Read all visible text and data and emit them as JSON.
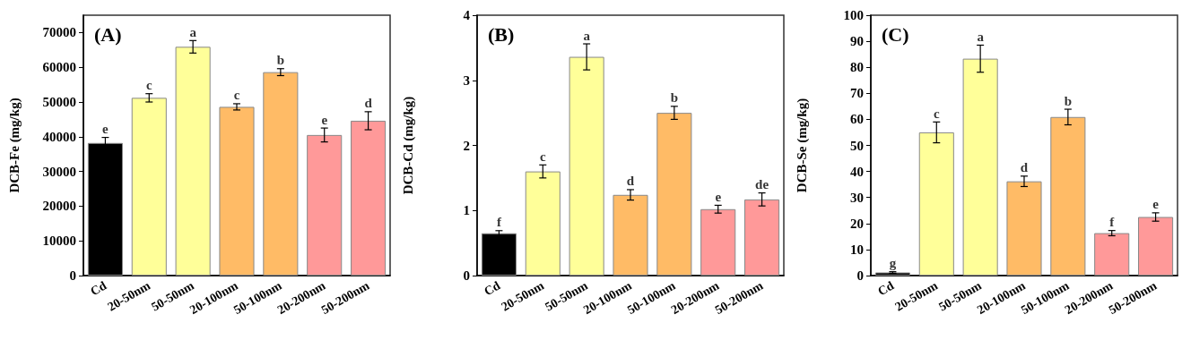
{
  "chart_data": [
    {
      "type": "bar",
      "title": "(A)",
      "ylabel": "DCB-Fe (mg/kg)",
      "categories": [
        "Cd",
        "20-50nm",
        "50-50nm",
        "20-100nm",
        "50-100nm",
        "20-200nm",
        "50-200nm"
      ],
      "values": [
        38200,
        51200,
        65900,
        48600,
        58600,
        40500,
        44600
      ],
      "errors": [
        1600,
        1200,
        1800,
        900,
        1000,
        2000,
        2600
      ],
      "colors": [
        "#000000",
        "#ffff99",
        "#ffff99",
        "#ffbb66",
        "#ffbb66",
        "#ff9999",
        "#ff9999"
      ],
      "ylim": [
        0,
        75000
      ],
      "yticks": [
        0,
        10000,
        20000,
        30000,
        40000,
        50000,
        60000,
        70000
      ],
      "grid": false,
      "annotations": [
        {
          "text": "e",
          "x": "Cd",
          "y": 39800
        },
        {
          "text": "c",
          "x": "20-50nm",
          "y": 52400
        },
        {
          "text": "a",
          "x": "50-50nm",
          "y": 67700
        },
        {
          "text": "c",
          "x": "20-100nm",
          "y": 49500
        },
        {
          "text": "b",
          "x": "50-100nm",
          "y": 59600
        },
        {
          "text": "e",
          "x": "20-200nm",
          "y": 42500
        },
        {
          "text": "d",
          "x": "50-200nm",
          "y": 47200
        }
      ]
    },
    {
      "type": "bar",
      "title": "(B)",
      "ylabel": "DCB-Cd (mg/kg)",
      "categories": [
        "Cd",
        "20-50nm",
        "50-50nm",
        "20-100nm",
        "50-100nm",
        "20-200nm",
        "50-200nm"
      ],
      "values": [
        0.65,
        1.6,
        3.36,
        1.24,
        2.5,
        1.02,
        1.17
      ],
      "errors": [
        0.04,
        0.1,
        0.2,
        0.08,
        0.1,
        0.06,
        0.1
      ],
      "colors": [
        "#000000",
        "#ffff99",
        "#ffff99",
        "#ffbb66",
        "#ffbb66",
        "#ff9999",
        "#ff9999"
      ],
      "ylim": [
        0,
        4
      ],
      "yticks": [
        0,
        1,
        2,
        3,
        4
      ],
      "grid": false,
      "annotations": [
        {
          "text": "f",
          "x": "Cd",
          "y": 0.69
        },
        {
          "text": "c",
          "x": "20-50nm",
          "y": 1.7
        },
        {
          "text": "a",
          "x": "50-50nm",
          "y": 3.56
        },
        {
          "text": "d",
          "x": "20-100nm",
          "y": 1.32
        },
        {
          "text": "b",
          "x": "50-100nm",
          "y": 2.6
        },
        {
          "text": "e",
          "x": "20-200nm",
          "y": 1.08
        },
        {
          "text": "de",
          "x": "50-200nm",
          "y": 1.27
        }
      ]
    },
    {
      "type": "bar",
      "title": "(C)",
      "ylabel": "DCB-Se (mg/kg)",
      "categories": [
        "Cd",
        "20-50nm",
        "50-50nm",
        "20-100nm",
        "50-100nm",
        "20-200nm",
        "50-200nm"
      ],
      "values": [
        1.2,
        55,
        83.3,
        36.2,
        60.9,
        16.3,
        22.5
      ],
      "errors": [
        0.3,
        4,
        5.2,
        2,
        3,
        1,
        1.6
      ],
      "colors": [
        "#000000",
        "#ffff99",
        "#ffff99",
        "#ffbb66",
        "#ffbb66",
        "#ff9999",
        "#ff9999"
      ],
      "ylim": [
        0,
        100
      ],
      "yticks": [
        0,
        10,
        20,
        30,
        40,
        50,
        60,
        70,
        80,
        90,
        100
      ],
      "grid": false,
      "annotations": [
        {
          "text": "g",
          "x": "Cd",
          "y": 1.5
        },
        {
          "text": "c",
          "x": "20-50nm",
          "y": 59
        },
        {
          "text": "a",
          "x": "50-50nm",
          "y": 88.5
        },
        {
          "text": "d",
          "x": "20-100nm",
          "y": 38.2
        },
        {
          "text": "b",
          "x": "50-100nm",
          "y": 63.9
        },
        {
          "text": "f",
          "x": "20-200nm",
          "y": 17.3
        },
        {
          "text": "e",
          "x": "50-200nm",
          "y": 24.1
        }
      ]
    }
  ]
}
